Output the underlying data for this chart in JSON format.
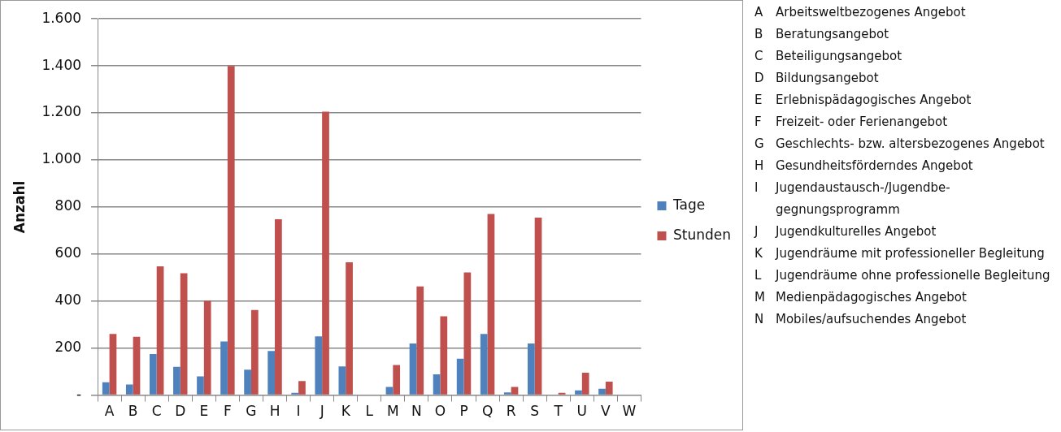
{
  "chart_data": {
    "type": "bar",
    "ylabel": "Anzahl",
    "categories": [
      "A",
      "B",
      "C",
      "D",
      "E",
      "F",
      "G",
      "H",
      "I",
      "J",
      "K",
      "L",
      "M",
      "N",
      "O",
      "P",
      "Q",
      "R",
      "S",
      "T",
      "U",
      "V",
      "W"
    ],
    "series": [
      {
        "name": "Tage",
        "color": "#4f81bd",
        "values": [
          55,
          45,
          175,
          120,
          80,
          228,
          108,
          188,
          10,
          250,
          122,
          0,
          35,
          220,
          88,
          155,
          260,
          12,
          220,
          null,
          20,
          27,
          0
        ]
      },
      {
        "name": "Stunden",
        "color": "#c0504d",
        "values": [
          260,
          248,
          548,
          518,
          402,
          1400,
          362,
          748,
          60,
          1205,
          565,
          null,
          128,
          462,
          335,
          522,
          770,
          35,
          755,
          10,
          95,
          57,
          0
        ]
      }
    ],
    "ylim": [
      0,
      1600
    ],
    "yticks": [
      {
        "value": 0,
        "label": "-"
      },
      {
        "value": 200,
        "label": "200"
      },
      {
        "value": 400,
        "label": "400"
      },
      {
        "value": 600,
        "label": "600"
      },
      {
        "value": 800,
        "label": "800"
      },
      {
        "value": 1000,
        "label": "1.000"
      },
      {
        "value": 1200,
        "label": "1.200"
      },
      {
        "value": 1400,
        "label": "1.400"
      },
      {
        "value": 1600,
        "label": "1.600"
      }
    ],
    "grid": "y",
    "legend": "right",
    "annotations": [
      "A Arbeitsweltbezogenes Angebot",
      "B Beratungsangebot",
      "C Beteiligungsangebot",
      "D Bildungsangebot",
      "E Erlebnispädagogisches Angebot",
      "F Freizeit- oder Ferienangebot",
      "G Geschlechts- bzw. altersbezogenes Angebot",
      "H Gesundheitsförderndes Angebot",
      "I Jugendaustausch-/Jugendbe- gegnungsprogramm",
      "J Jugendkulturelles Angebot",
      "K Jugendräume mit professioneller Begleitung",
      "L Jugendräume ohne professionelle Begleitung",
      "M Medienpädagogisches Angebot",
      "N Mobiles/aufsuchendes Angebot"
    ]
  }
}
